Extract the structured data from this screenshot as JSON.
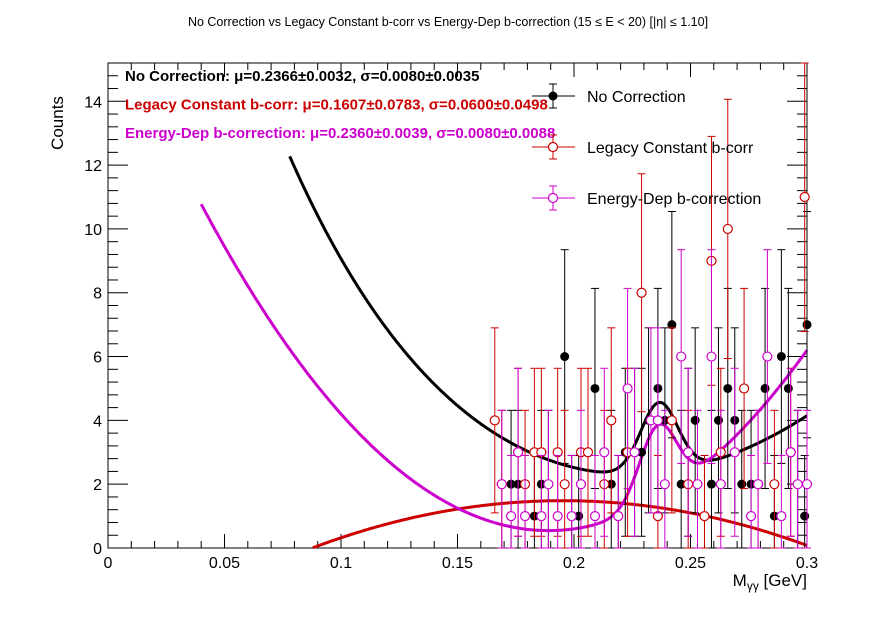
{
  "chart_data": {
    "type": "scatter",
    "title": "No Correction vs Legacy Constant b-corr vs Energy-Dep b-correction   (15 ≤ E < 20)   [|η| ≤ 1.10]",
    "xlabel_main": "M",
    "xlabel_sub": "γγ",
    "xlabel_unit": " [GeV]",
    "ylabel": "Counts",
    "xlim": [
      0,
      0.3
    ],
    "ylim": [
      0,
      15.2
    ],
    "x_ticks": [
      {
        "v": 0,
        "label": "0"
      },
      {
        "v": 0.05,
        "label": "0.05"
      },
      {
        "v": 0.1,
        "label": "0.1"
      },
      {
        "v": 0.15,
        "label": "0.15"
      },
      {
        "v": 0.2,
        "label": "0.2"
      },
      {
        "v": 0.25,
        "label": "0.25"
      },
      {
        "v": 0.3,
        "label": "0.3"
      }
    ],
    "y_ticks": [
      {
        "v": 0,
        "label": "0"
      },
      {
        "v": 2,
        "label": "2"
      },
      {
        "v": 4,
        "label": "4"
      },
      {
        "v": 6,
        "label": "6"
      },
      {
        "v": 8,
        "label": "8"
      },
      {
        "v": 10,
        "label": "10"
      },
      {
        "v": 12,
        "label": "12"
      },
      {
        "v": 14,
        "label": "14"
      }
    ],
    "grid": false,
    "legend_position": "top-right",
    "stats": [
      {
        "label": "No Correction:",
        "text": "μ=0.2366±0.0032, σ=0.0080±0.0035",
        "color": "#000000"
      },
      {
        "label": "Legacy Constant b-corr:",
        "text": "μ=0.1607±0.0783, σ=0.0600±0.0498",
        "color": "#cc0000"
      },
      {
        "label": "Energy-Dep b-correction:",
        "text": "μ=0.2360±0.0039, σ=0.0080±0.0088",
        "color": "#cc00cc"
      }
    ],
    "series": [
      {
        "name": "No Correction",
        "color": "#000000",
        "marker": "filled-circle",
        "points": [
          [
            0.173,
            2
          ],
          [
            0.176,
            2
          ],
          [
            0.183,
            1
          ],
          [
            0.186,
            2
          ],
          [
            0.189,
            2
          ],
          [
            0.196,
            6
          ],
          [
            0.199,
            1
          ],
          [
            0.202,
            1
          ],
          [
            0.209,
            5
          ],
          [
            0.216,
            2
          ],
          [
            0.219,
            1
          ],
          [
            0.222,
            3
          ],
          [
            0.226,
            3
          ],
          [
            0.229,
            3
          ],
          [
            0.232,
            4
          ],
          [
            0.236,
            5
          ],
          [
            0.239,
            4
          ],
          [
            0.242,
            7
          ],
          [
            0.246,
            2
          ],
          [
            0.249,
            3
          ],
          [
            0.252,
            4
          ],
          [
            0.256,
            1
          ],
          [
            0.259,
            2
          ],
          [
            0.262,
            4
          ],
          [
            0.266,
            5
          ],
          [
            0.269,
            4
          ],
          [
            0.272,
            2
          ],
          [
            0.276,
            2
          ],
          [
            0.282,
            5
          ],
          [
            0.286,
            1
          ],
          [
            0.289,
            6
          ],
          [
            0.292,
            5
          ],
          [
            0.296,
            2
          ],
          [
            0.299,
            1
          ],
          [
            0.3,
            7
          ]
        ],
        "fit": {
          "type": "gauss+exp",
          "mu": 0.2366,
          "sigma": 0.008,
          "amp": 2.2,
          "a": 3.1,
          "b": -14.5,
          "c": -4.35,
          "d": 130,
          "x_start": 0.078,
          "x_end": 0.3
        }
      },
      {
        "name": "Legacy Constant b-corr",
        "color": "#cc0000",
        "marker": "open-circle",
        "points": [
          [
            0.166,
            4
          ],
          [
            0.169,
            2
          ],
          [
            0.176,
            3
          ],
          [
            0.179,
            2
          ],
          [
            0.183,
            3
          ],
          [
            0.186,
            3
          ],
          [
            0.193,
            3
          ],
          [
            0.196,
            2
          ],
          [
            0.203,
            3
          ],
          [
            0.206,
            3
          ],
          [
            0.213,
            2
          ],
          [
            0.216,
            4
          ],
          [
            0.223,
            3
          ],
          [
            0.229,
            8
          ],
          [
            0.236,
            1
          ],
          [
            0.242,
            4
          ],
          [
            0.249,
            2
          ],
          [
            0.256,
            1
          ],
          [
            0.259,
            9
          ],
          [
            0.263,
            3
          ],
          [
            0.266,
            10
          ],
          [
            0.273,
            5
          ],
          [
            0.279,
            2
          ],
          [
            0.286,
            2
          ],
          [
            0.293,
            3
          ],
          [
            0.299,
            11
          ]
        ],
        "fit": {
          "type": "poly",
          "coeffs": [
            -3.4,
            50,
            -128
          ],
          "x_start": 0.072,
          "x_end": 0.3
        }
      },
      {
        "name": "Energy-Dep b-correction",
        "color": "#cc00cc",
        "marker": "open-circle",
        "points": [
          [
            0.169,
            2
          ],
          [
            0.173,
            1
          ],
          [
            0.176,
            3
          ],
          [
            0.179,
            1
          ],
          [
            0.186,
            1
          ],
          [
            0.189,
            2
          ],
          [
            0.193,
            1
          ],
          [
            0.199,
            1
          ],
          [
            0.203,
            2
          ],
          [
            0.209,
            1
          ],
          [
            0.213,
            3
          ],
          [
            0.219,
            1
          ],
          [
            0.223,
            5
          ],
          [
            0.226,
            3
          ],
          [
            0.233,
            4
          ],
          [
            0.236,
            4
          ],
          [
            0.239,
            2
          ],
          [
            0.246,
            6
          ],
          [
            0.249,
            3
          ],
          [
            0.253,
            2
          ],
          [
            0.259,
            6
          ],
          [
            0.263,
            2
          ],
          [
            0.269,
            3
          ],
          [
            0.276,
            1
          ],
          [
            0.279,
            2
          ],
          [
            0.283,
            6
          ],
          [
            0.289,
            1
          ],
          [
            0.293,
            3
          ],
          [
            0.296,
            2
          ],
          [
            0.3,
            2
          ]
        ],
        "fit": {
          "type": "gauss+exp",
          "mu": 0.236,
          "sigma": 0.008,
          "amp": 2.3,
          "a": 9.4,
          "b": -7.2,
          "c": 0.0,
          "d": 0,
          "quad": [
            17.0,
            -174.0,
            460.0
          ],
          "x_start": 0.04,
          "x_end": 0.3
        }
      }
    ]
  }
}
